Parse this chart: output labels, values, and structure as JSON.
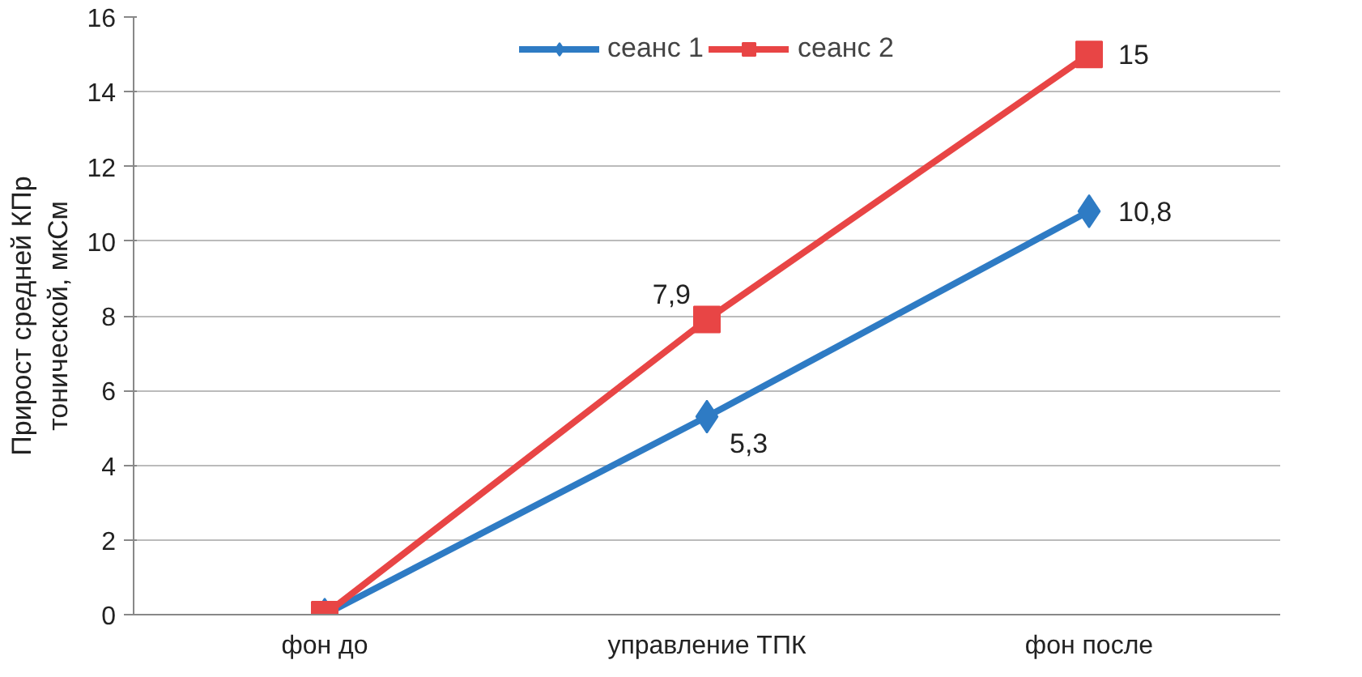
{
  "chart_data": {
    "type": "line",
    "ylabel": "Прирост средней КПр тонической, мкСм",
    "categories": [
      "фон до",
      "управление ТПК",
      "фон после"
    ],
    "series": [
      {
        "name": "сеанс 1",
        "color": "#2e7bc4",
        "marker": "diamond",
        "values": [
          0,
          5.3,
          10.8
        ],
        "value_labels": [
          null,
          "5,3",
          "10,8"
        ]
      },
      {
        "name": "сеанс 2",
        "color": "#e84545",
        "marker": "square",
        "values": [
          0,
          7.9,
          15
        ],
        "value_labels": [
          null,
          "7,9",
          "15"
        ]
      }
    ],
    "ylim": [
      0,
      16
    ],
    "yticks": [
      0,
      2,
      4,
      6,
      8,
      10,
      12,
      14,
      16
    ],
    "grid": "y",
    "legend": "top",
    "line_style": "solid"
  }
}
